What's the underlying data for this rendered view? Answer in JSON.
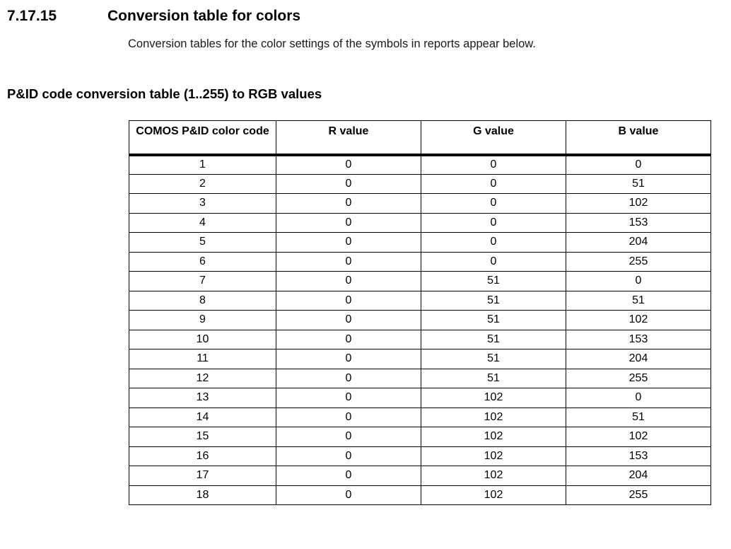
{
  "page": {
    "section_number": "7.17.15",
    "section_title": "Conversion table for colors",
    "intro_text": "Conversion tables for the color settings of the symbols in reports appear below.",
    "table_title": "P&ID code conversion table (1..255) to RGB values"
  },
  "colors": {
    "text": "#000000",
    "border": "#000000",
    "background": "#ffffff"
  },
  "table": {
    "columns": [
      "COMOS P&ID color code",
      "R value",
      "G value",
      "B value"
    ],
    "rows": [
      [
        "1",
        "0",
        "0",
        "0"
      ],
      [
        "2",
        "0",
        "0",
        "51"
      ],
      [
        "3",
        "0",
        "0",
        "102"
      ],
      [
        "4",
        "0",
        "0",
        "153"
      ],
      [
        "5",
        "0",
        "0",
        "204"
      ],
      [
        "6",
        "0",
        "0",
        "255"
      ],
      [
        "7",
        "0",
        "51",
        "0"
      ],
      [
        "8",
        "0",
        "51",
        "51"
      ],
      [
        "9",
        "0",
        "51",
        "102"
      ],
      [
        "10",
        "0",
        "51",
        "153"
      ],
      [
        "11",
        "0",
        "51",
        "204"
      ],
      [
        "12",
        "0",
        "51",
        "255"
      ],
      [
        "13",
        "0",
        "102",
        "0"
      ],
      [
        "14",
        "0",
        "102",
        "51"
      ],
      [
        "15",
        "0",
        "102",
        "102"
      ],
      [
        "16",
        "0",
        "102",
        "153"
      ],
      [
        "17",
        "0",
        "102",
        "204"
      ],
      [
        "18",
        "0",
        "102",
        "255"
      ]
    ]
  }
}
